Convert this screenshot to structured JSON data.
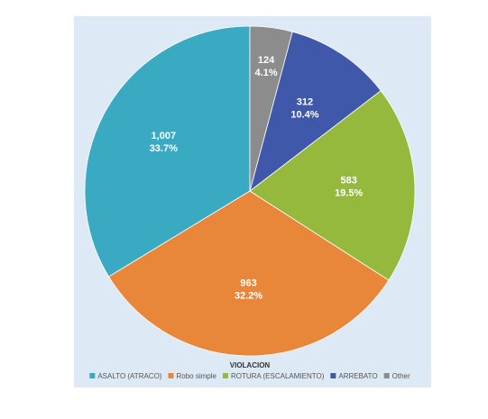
{
  "chart_data": {
    "type": "pie",
    "legend_title": "VIOLACION",
    "categories": [
      "ASALTO (ATRACO)",
      "Robo simple",
      "ROTURA (ESCALAMIENTO)",
      "ARREBATO",
      "Other"
    ],
    "values": [
      1007,
      963,
      583,
      312,
      124
    ],
    "value_labels": [
      "1,007",
      "963",
      "583",
      "312",
      "124"
    ],
    "percents": [
      33.7,
      32.2,
      19.5,
      10.4,
      4.1
    ],
    "percent_labels": [
      "33.7%",
      "32.2%",
      "19.5%",
      "10.4%",
      "4.1%"
    ],
    "colors": [
      "#3aa9c2",
      "#e8873a",
      "#95b93c",
      "#4058aa",
      "#8c8c8c"
    ],
    "direction": "counterclockwise",
    "legend": "bottom"
  }
}
